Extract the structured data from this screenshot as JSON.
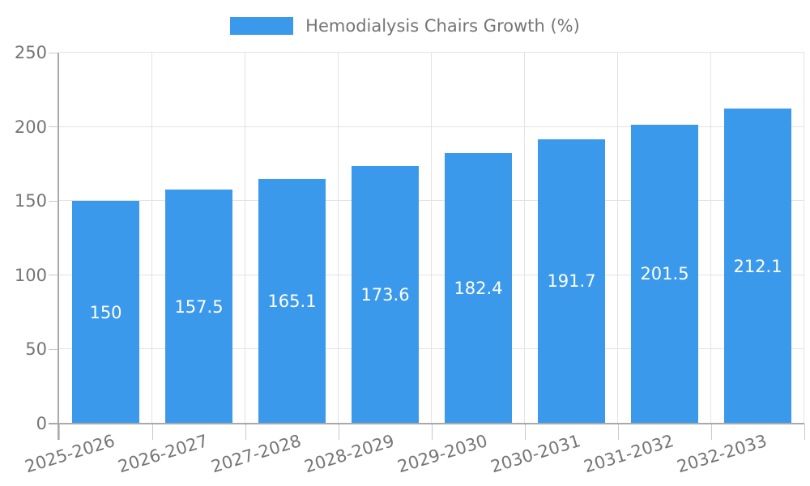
{
  "chart_data": {
    "type": "bar",
    "title": "Hemodialysis Chairs Growth (%)",
    "legend_position": "top",
    "categories": [
      "2025-2026",
      "2026-2027",
      "2027-2028",
      "2028-2029",
      "2029-2030",
      "2030-2031",
      "2031-2032",
      "2032-2033"
    ],
    "series": [
      {
        "name": "Hemodialysis Chairs Growth (%)",
        "values": [
          150,
          157.5,
          165.1,
          173.6,
          182.4,
          191.7,
          201.5,
          212.1
        ],
        "value_labels": [
          "150",
          "157.5",
          "165.1",
          "173.6",
          "182.4",
          "191.7",
          "201.5",
          "212.1"
        ]
      }
    ],
    "xlabel": "",
    "ylabel": "",
    "ylim": [
      0,
      250
    ],
    "ytick_step": 50,
    "ytick_labels": [
      "0",
      "50",
      "100",
      "150",
      "200",
      "250"
    ],
    "grid": true,
    "value_labels_inside_bars": true,
    "colors": {
      "bar": "#3b99ec",
      "grid": "#e3e3e3",
      "axis": "#a9a9a9",
      "tick": "#c9c9c9",
      "label_text": "#757575",
      "value_text": "#ffffff",
      "background": "#ffffff"
    }
  }
}
